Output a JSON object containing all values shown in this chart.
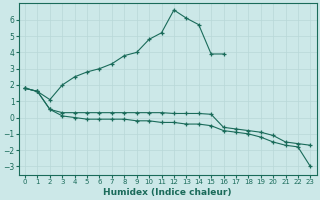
{
  "xlabel": "Humidex (Indice chaleur)",
  "background_color": "#cce8e8",
  "grid_color": "#aacfcf",
  "line_color": "#1a6b5a",
  "xlim": [
    -0.5,
    23.5
  ],
  "ylim": [
    -3.5,
    7.0
  ],
  "yticks": [
    -3,
    -2,
    -1,
    0,
    1,
    2,
    3,
    4,
    5,
    6
  ],
  "xticks": [
    0,
    1,
    2,
    3,
    4,
    5,
    6,
    7,
    8,
    9,
    10,
    11,
    12,
    13,
    14,
    15,
    16,
    17,
    18,
    19,
    20,
    21,
    22,
    23
  ],
  "series": [
    {
      "x": [
        0,
        1,
        2,
        3,
        4,
        5,
        6,
        7,
        8,
        9,
        10,
        11,
        12,
        13,
        14,
        15,
        16
      ],
      "y": [
        1.8,
        1.6,
        1.1,
        2.0,
        2.5,
        2.8,
        3.0,
        3.3,
        3.8,
        4.0,
        4.8,
        5.2,
        6.6,
        6.1,
        5.7,
        3.9,
        3.9
      ]
    },
    {
      "x": [
        0,
        1,
        2,
        3,
        4,
        5,
        6,
        7,
        8,
        9,
        10,
        11,
        12,
        13,
        14,
        15,
        16,
        17,
        18,
        19,
        20,
        21,
        22,
        23
      ],
      "y": [
        1.8,
        1.6,
        0.5,
        0.3,
        0.3,
        0.3,
        0.3,
        0.3,
        0.3,
        0.3,
        0.3,
        0.3,
        0.25,
        0.25,
        0.25,
        0.2,
        -0.6,
        -0.7,
        -0.8,
        -0.9,
        -1.1,
        -1.5,
        -1.6,
        -1.7
      ]
    },
    {
      "x": [
        0,
        1,
        2,
        3,
        4,
        5,
        6,
        7,
        8,
        9,
        10,
        11,
        12,
        13,
        14,
        15,
        16,
        17,
        18,
        19,
        20,
        21,
        22,
        23
      ],
      "y": [
        1.8,
        1.6,
        0.5,
        0.1,
        0.0,
        -0.1,
        -0.1,
        -0.1,
        -0.1,
        -0.2,
        -0.2,
        -0.3,
        -0.3,
        -0.4,
        -0.4,
        -0.5,
        -0.8,
        -0.9,
        -1.0,
        -1.2,
        -1.5,
        -1.7,
        -1.8,
        -3.0
      ]
    }
  ]
}
